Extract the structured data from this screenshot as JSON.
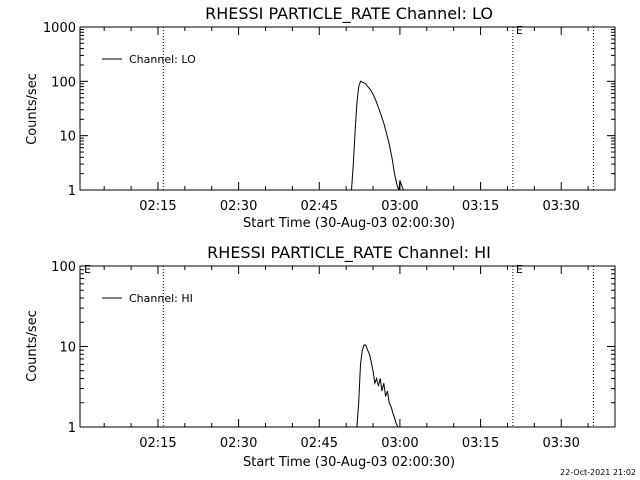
{
  "footer": {
    "timestamp": "22-Oct-2021 21:02"
  },
  "chart_data": [
    {
      "type": "line",
      "title": "RHESSI PARTICLE_RATE Channel: LO",
      "xlabel": "Start Time (30-Aug-03 02:00:30)",
      "ylabel": "Counts/sec",
      "y_scale": "log",
      "ylim": [
        1,
        1000
      ],
      "y_ticks": [
        1,
        10,
        100,
        1000
      ],
      "y_tick_labels": [
        "1",
        "10",
        "100",
        "1000"
      ],
      "xlim": [
        "02:00:30",
        "03:40:00"
      ],
      "x_ticks": [
        "02:15",
        "02:30",
        "02:45",
        "03:00",
        "03:15",
        "03:30"
      ],
      "legend": {
        "position": "top-left",
        "entries": [
          "Channel: LO"
        ]
      },
      "vertical_markers": [
        {
          "time": "02:16",
          "label": ""
        },
        {
          "time": "03:21",
          "label": "E"
        },
        {
          "time": "03:36",
          "label": ""
        }
      ],
      "series": [
        {
          "name": "Channel: LO",
          "x": [
            "02:51:00",
            "02:51:20",
            "02:51:40",
            "02:52:00",
            "02:52:20",
            "02:52:40",
            "02:53:00",
            "02:53:30",
            "02:54:00",
            "02:54:30",
            "02:55:00",
            "02:55:30",
            "02:56:00",
            "02:56:30",
            "02:57:00",
            "02:57:30",
            "02:58:00",
            "02:58:30",
            "02:59:00",
            "02:59:30",
            "02:59:50",
            "03:00:00",
            "03:00:20",
            "03:00:40"
          ],
          "values": [
            1,
            3,
            12,
            40,
            80,
            100,
            97,
            92,
            80,
            70,
            58,
            45,
            33,
            24,
            17,
            11,
            7,
            4,
            2,
            1.2,
            1,
            1.5,
            1.2,
            1
          ]
        }
      ]
    },
    {
      "type": "line",
      "title": "RHESSI PARTICLE_RATE Channel: HI",
      "xlabel": "Start Time (30-Aug-03 02:00:30)",
      "ylabel": "Counts/sec",
      "y_scale": "log",
      "ylim": [
        1,
        100
      ],
      "y_ticks": [
        1,
        10,
        100
      ],
      "y_tick_labels": [
        "1",
        "10",
        "100"
      ],
      "xlim": [
        "02:00:30",
        "03:40:00"
      ],
      "x_ticks": [
        "02:15",
        "02:30",
        "02:45",
        "03:00",
        "03:15",
        "03:30"
      ],
      "legend": {
        "position": "top-left",
        "entries": [
          "Channel: HI"
        ]
      },
      "vertical_markers": [
        {
          "time": "02:16",
          "label": ""
        },
        {
          "time": "03:21",
          "label": "E"
        },
        {
          "time": "03:36",
          "label": ""
        }
      ],
      "corner_label": "E",
      "series": [
        {
          "name": "Channel: HI",
          "x": [
            "02:52:00",
            "02:52:20",
            "02:52:40",
            "02:53:00",
            "02:53:20",
            "02:53:40",
            "02:54:00",
            "02:54:20",
            "02:54:40",
            "02:55:00",
            "02:55:20",
            "02:55:40",
            "02:56:00",
            "02:56:20",
            "02:56:40",
            "02:57:00",
            "02:57:20",
            "02:57:40",
            "02:58:00",
            "02:58:20",
            "02:58:40",
            "02:59:00",
            "02:59:20",
            "02:59:40"
          ],
          "values": [
            1,
            2,
            6,
            9,
            10.5,
            10.3,
            9,
            8,
            6.5,
            5,
            3.5,
            4,
            3.2,
            4,
            2.8,
            3.5,
            2.4,
            2.8,
            2,
            1.8,
            1.5,
            1.3,
            1.1,
            1
          ]
        }
      ]
    }
  ]
}
